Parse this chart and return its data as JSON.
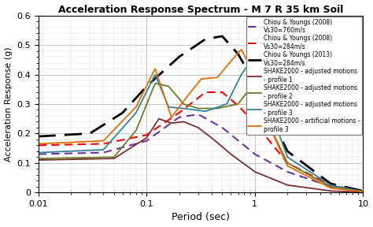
{
  "title": "Acceleration Response Spectrum - M 7 R 35 km Soil",
  "xlabel": "Period (sec)",
  "ylabel": "Acceleration Response (g)",
  "xlim": [
    0.01,
    10
  ],
  "ylim": [
    0,
    0.6
  ],
  "background_color": "#ffffff",
  "legend_entries": [
    "Chiou & Youngs (2008)\nVs30=760m/s",
    "Chiou & Youngs (2008)\nVs30=284m/s",
    "Chiou & Youngs (2013)\nVs30=284m/s",
    "SHAKE2000 - adjusted motions\n- profile 1",
    "SHAKE2000 - adjusted motions\n- profile 2",
    "SHAKE2000 - adjusted motions\n- profile 3",
    "SHAKE2000 - artificial motions -\nprofile 3"
  ],
  "legend_colors": [
    "#7030a0",
    "#ff0000",
    "#000000",
    "#7b2c2c",
    "#6b7c2a",
    "#31849b",
    "#e36c09"
  ],
  "legend_styles": [
    "--",
    "--",
    "--",
    "-",
    "-",
    "-",
    "-"
  ]
}
